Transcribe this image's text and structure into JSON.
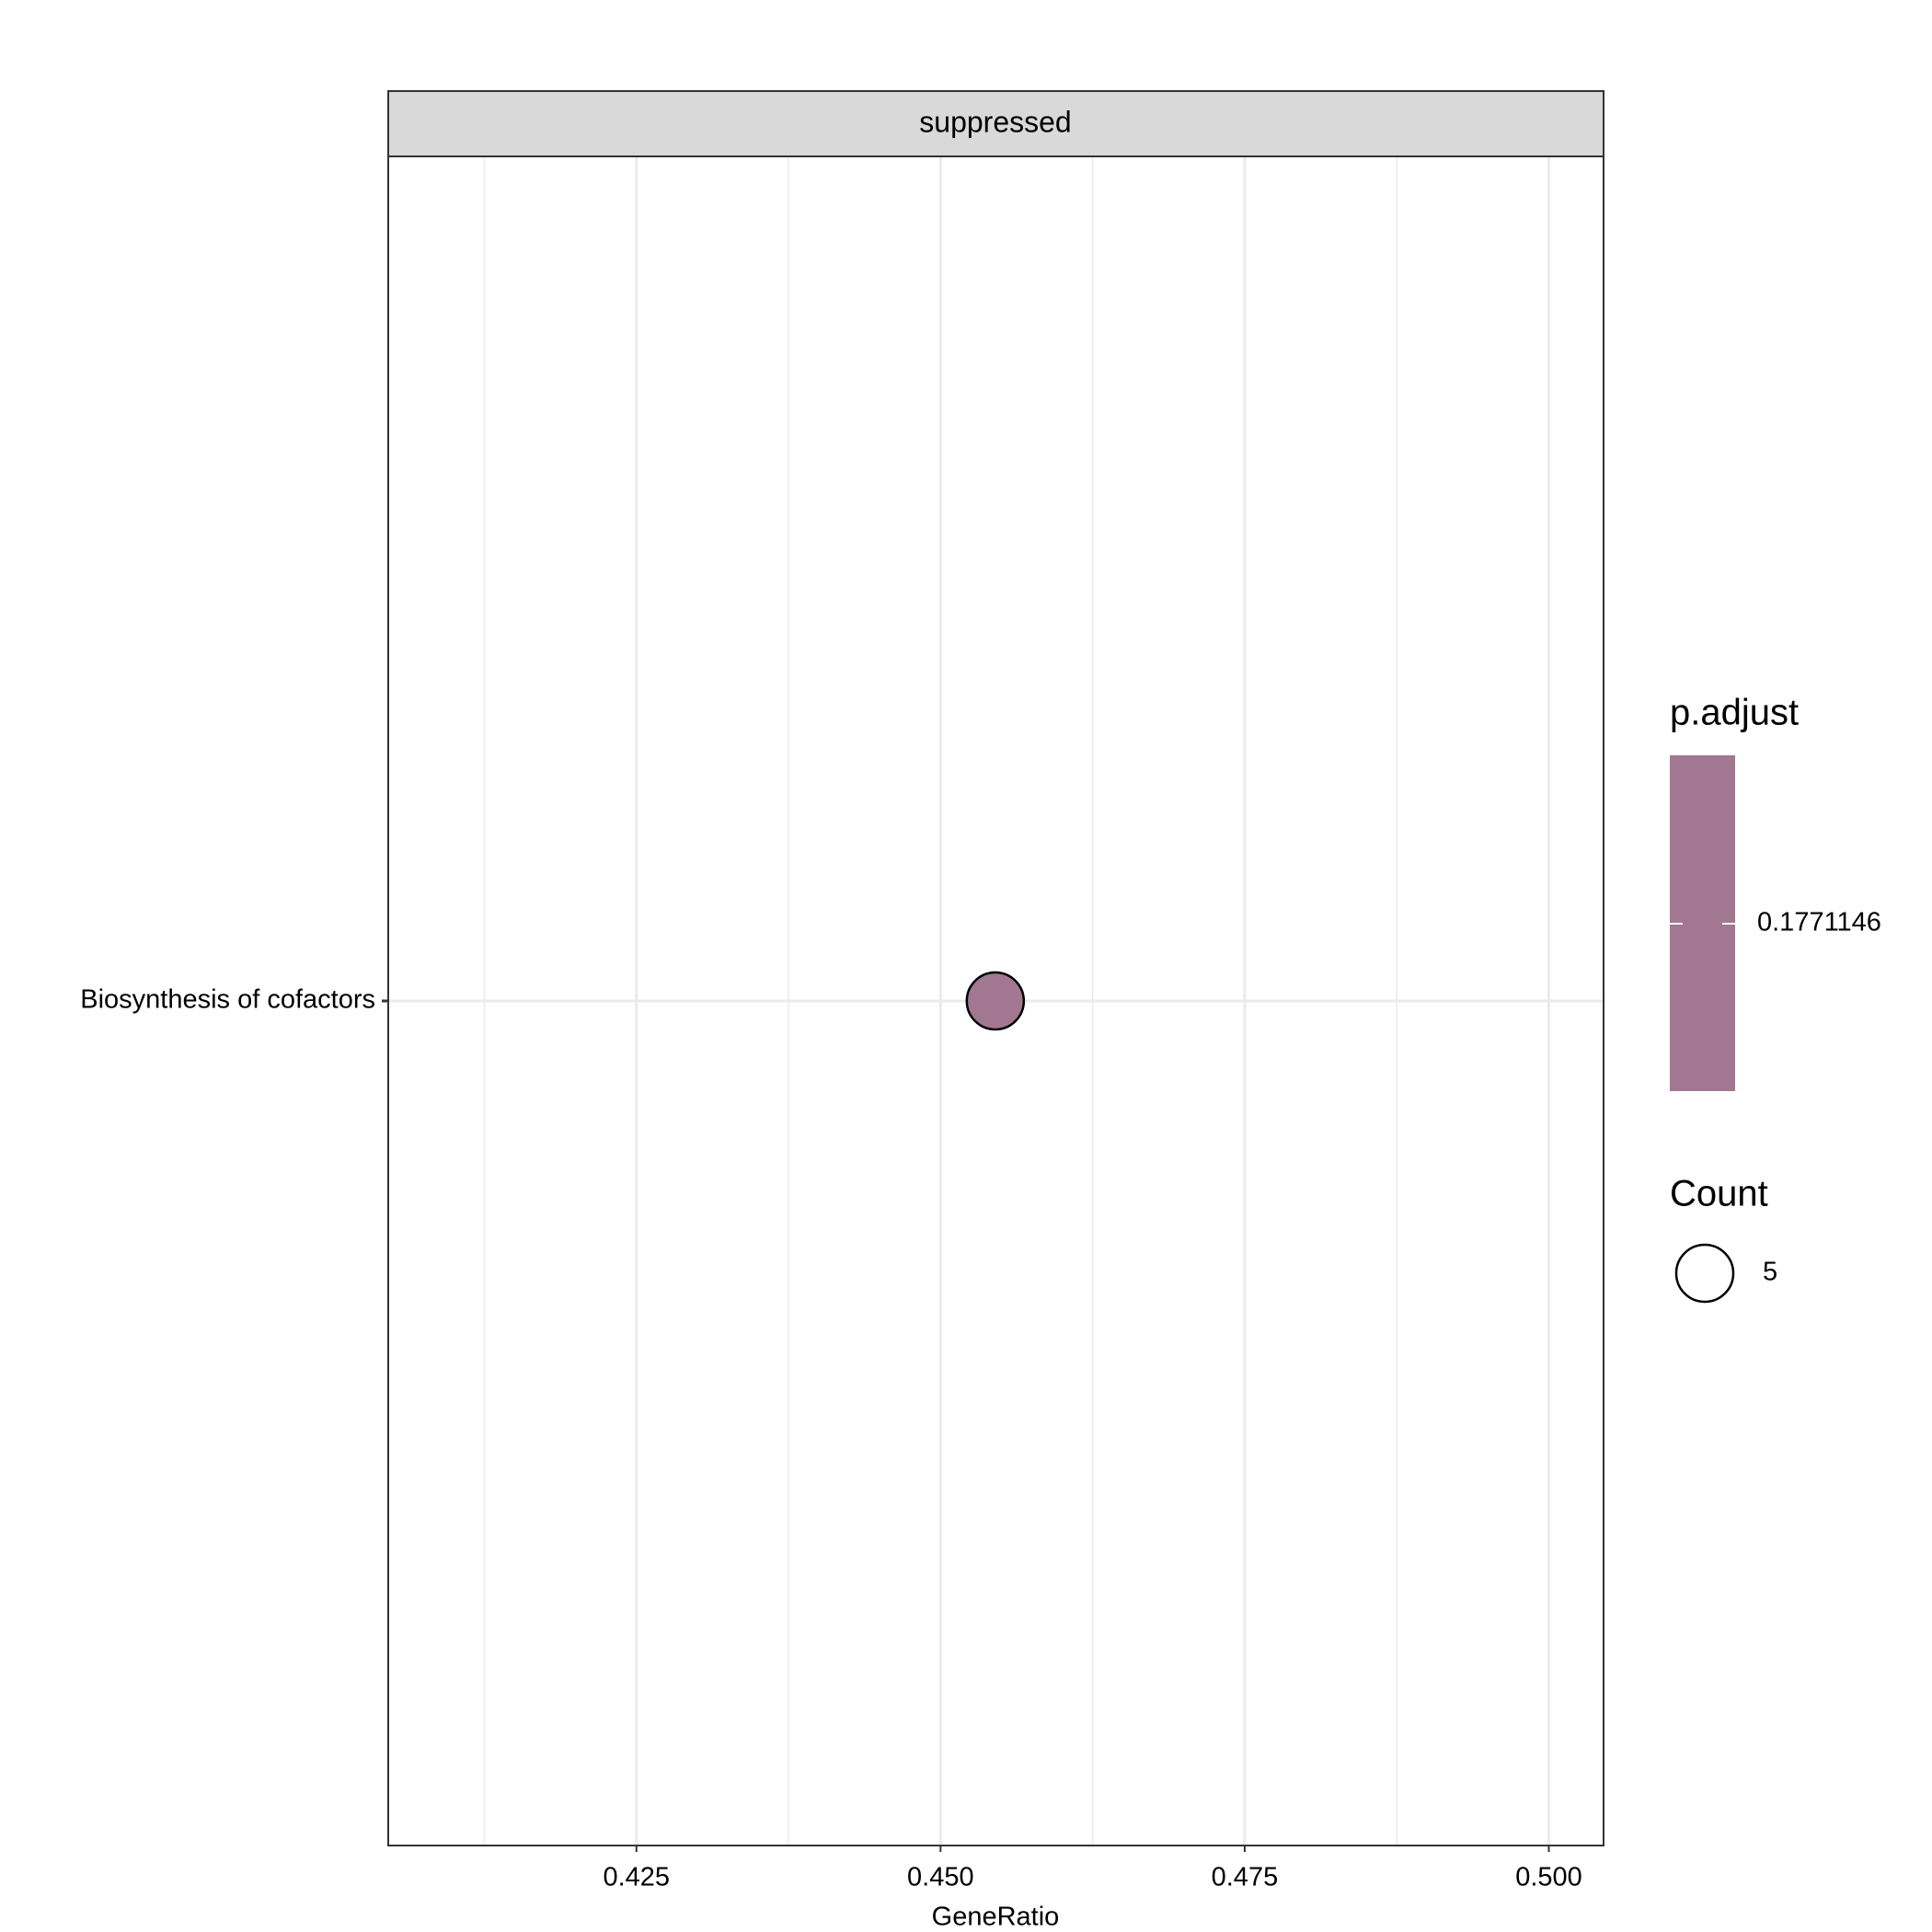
{
  "chart_data": {
    "type": "scatter",
    "facet": "suppressed",
    "x_label": "GeneRatio",
    "categories": [
      "Biosynthesis of cofactors"
    ],
    "values": [
      0.4545
    ],
    "sizes": [
      5
    ],
    "color_values": [
      0.1771146
    ],
    "color": "#a27791",
    "xlim": [
      0.4046,
      0.5045
    ],
    "xticks": [
      0.425,
      {
        "value": 0.45,
        "label": "0.450"
      },
      0.475,
      {
        "value": 0.5,
        "label": "0.500"
      }
    ],
    "xminor": [
      0.4125,
      0.4375,
      0.4625,
      0.4875
    ],
    "grid": true,
    "color_legend": {
      "title": "p.adjust",
      "ticks": [
        0.1771146
      ]
    },
    "size_legend": {
      "title": "Count",
      "ticks": [
        5
      ]
    }
  }
}
